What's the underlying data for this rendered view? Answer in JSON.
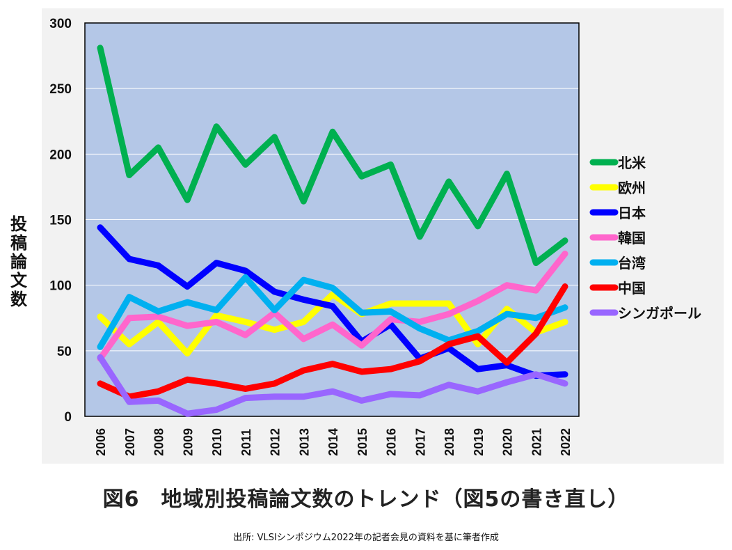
{
  "chart_data": {
    "type": "line",
    "title": "図6　地域別投稿論文数のトレンド（図5の書き直し）",
    "source": "出所: VLSIシンポジウム2022年の記者会見の資料を基に筆者作成",
    "xlabel": "",
    "ylabel": "投稿論文数",
    "ylim": [
      0,
      300
    ],
    "yticks": [
      0,
      50,
      100,
      150,
      200,
      250,
      300
    ],
    "grid": true,
    "legend_position": "right",
    "plot_background": "#b4c7e7",
    "categories": [
      "2006",
      "2007",
      "2008",
      "2009",
      "2010",
      "2011",
      "2012",
      "2013",
      "2014",
      "2015",
      "2016",
      "2017",
      "2018",
      "2019",
      "2020",
      "2021",
      "2022"
    ],
    "series": [
      {
        "name": "北米",
        "color": "#00b050",
        "values": [
          281,
          184,
          205,
          165,
          221,
          192,
          213,
          164,
          217,
          183,
          192,
          137,
          179,
          145,
          185,
          117,
          134
        ]
      },
      {
        "name": "欧州",
        "color": "#ffff00",
        "values": [
          76,
          55,
          72,
          48,
          77,
          72,
          66,
          72,
          93,
          78,
          86,
          86,
          86,
          55,
          82,
          64,
          72
        ]
      },
      {
        "name": "日本",
        "color": "#0000ff",
        "values": [
          144,
          120,
          115,
          99,
          117,
          111,
          95,
          89,
          84,
          57,
          70,
          44,
          52,
          36,
          39,
          31,
          32
        ]
      },
      {
        "name": "韓国",
        "color": "#ff66cc",
        "values": [
          44,
          75,
          76,
          69,
          72,
          62,
          79,
          59,
          70,
          54,
          74,
          72,
          78,
          88,
          100,
          96,
          124
        ]
      },
      {
        "name": "台湾",
        "color": "#00b0f0",
        "values": [
          53,
          91,
          80,
          87,
          81,
          106,
          81,
          104,
          98,
          79,
          80,
          67,
          58,
          65,
          78,
          75,
          83
        ]
      },
      {
        "name": "中国",
        "color": "#ff0000",
        "values": [
          25,
          15,
          19,
          28,
          25,
          21,
          25,
          35,
          40,
          34,
          36,
          42,
          55,
          61,
          41,
          63,
          99
        ]
      },
      {
        "name": "シンガポール",
        "color": "#9966ff",
        "values": [
          45,
          11,
          12,
          2,
          5,
          14,
          15,
          15,
          19,
          12,
          17,
          16,
          24,
          19,
          26,
          32,
          25
        ]
      }
    ]
  }
}
